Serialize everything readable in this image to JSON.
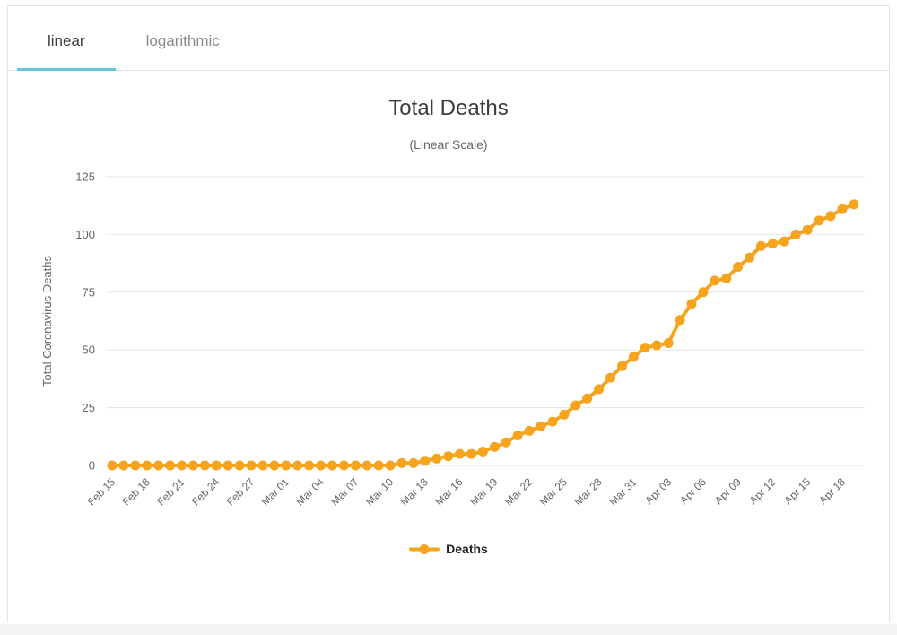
{
  "tabs": [
    {
      "label": "linear",
      "active": true
    },
    {
      "label": "logarithmic",
      "active": false
    }
  ],
  "chart_data": {
    "type": "line",
    "title": "Total Deaths",
    "subtitle": "(Linear Scale)",
    "xlabel": "",
    "ylabel": "Total Coronavirus Deaths",
    "ylim": [
      0,
      125
    ],
    "yticks": [
      0,
      25,
      50,
      75,
      100,
      125
    ],
    "grid": true,
    "x_tick_interval": 3,
    "legend": {
      "position": "bottom",
      "label": "Deaths"
    },
    "series": [
      {
        "name": "Deaths",
        "color": "#f6a41d",
        "x": [
          "Feb 15",
          "Feb 16",
          "Feb 17",
          "Feb 18",
          "Feb 19",
          "Feb 20",
          "Feb 21",
          "Feb 22",
          "Feb 23",
          "Feb 24",
          "Feb 25",
          "Feb 26",
          "Feb 27",
          "Feb 28",
          "Feb 29",
          "Mar 01",
          "Mar 02",
          "Mar 03",
          "Mar 04",
          "Mar 05",
          "Mar 06",
          "Mar 07",
          "Mar 08",
          "Mar 09",
          "Mar 10",
          "Mar 11",
          "Mar 12",
          "Mar 13",
          "Mar 14",
          "Mar 15",
          "Mar 16",
          "Mar 17",
          "Mar 18",
          "Mar 19",
          "Mar 20",
          "Mar 21",
          "Mar 22",
          "Mar 23",
          "Mar 24",
          "Mar 25",
          "Mar 26",
          "Mar 27",
          "Mar 28",
          "Mar 29",
          "Mar 30",
          "Mar 31",
          "Apr 01",
          "Apr 02",
          "Apr 03",
          "Apr 04",
          "Apr 05",
          "Apr 06",
          "Apr 07",
          "Apr 08",
          "Apr 09",
          "Apr 10",
          "Apr 11",
          "Apr 12",
          "Apr 13",
          "Apr 14",
          "Apr 15",
          "Apr 16",
          "Apr 17",
          "Apr 18",
          "Apr 19"
        ],
        "values": [
          0,
          0,
          0,
          0,
          0,
          0,
          0,
          0,
          0,
          0,
          0,
          0,
          0,
          0,
          0,
          0,
          0,
          0,
          0,
          0,
          0,
          0,
          0,
          0,
          0,
          1,
          1,
          2,
          3,
          4,
          5,
          5,
          6,
          8,
          10,
          13,
          15,
          17,
          19,
          22,
          26,
          29,
          33,
          38,
          43,
          47,
          51,
          52,
          53,
          63,
          70,
          75,
          80,
          81,
          86,
          90,
          95,
          96,
          97,
          100,
          102,
          106,
          108,
          111,
          113
        ]
      }
    ]
  },
  "colors": {
    "accent_tab_underline": "#63c8de",
    "series_line": "#f6a41d",
    "gridline": "#e7e7e7",
    "axis_text": "#666666",
    "title_text": "#3c3c3c",
    "card_border": "#e2e2e2"
  }
}
